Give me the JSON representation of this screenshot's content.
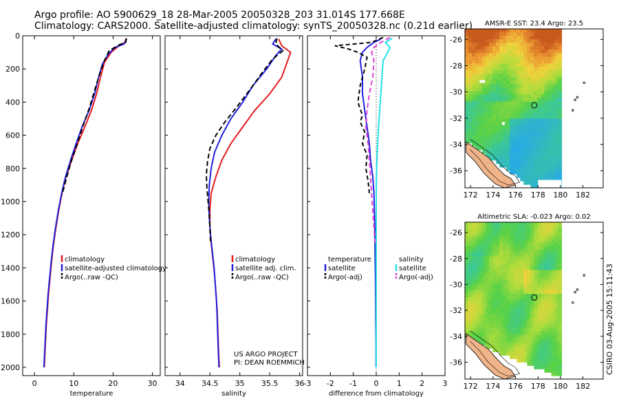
{
  "header": {
    "line1": "Argo profile: AO 5900629_18 28-Mar-2005 20050328_203 31.014S 177.668E",
    "line2": "Climatology: CARS2000. Satellite-adjusted climatology: synTS_20050328.nc (0.21d earlier)"
  },
  "side_text": "CSIRO 03-Aug-2005 15:11:43",
  "colors": {
    "clim": "#e41a1c",
    "sat": "#1f1fdd",
    "argo": "#000000",
    "sal_sat": "#22e0e8",
    "sal_argo": "#e040d8"
  },
  "chart_data": [
    {
      "type": "line",
      "xlabel": "temperature",
      "xlim": [
        -3,
        32
      ],
      "ylim": [
        2050,
        0
      ],
      "y_reversed": true,
      "x_ticks": [
        0,
        10,
        20,
        30
      ],
      "x_tick_labels": [
        "0",
        "10",
        "20",
        "30"
      ],
      "y_ticks": [
        0,
        200,
        400,
        600,
        800,
        1000,
        1200,
        1400,
        1600,
        1800,
        2000
      ],
      "y_tick_labels": [
        "0",
        "200",
        "400",
        "600",
        "800",
        "1000",
        "1200",
        "1400",
        "1600",
        "1800",
        "2000"
      ],
      "legend": [
        "climatology",
        "satellite-adjusted climatology",
        "Argo(..raw -QC)"
      ],
      "series": [
        {
          "name": "climatology",
          "color": "#e41a1c",
          "dash": "",
          "points": [
            [
              23.2,
              20
            ],
            [
              23.0,
              40
            ],
            [
              21.5,
              60
            ],
            [
              19.5,
              100
            ],
            [
              17.8,
              160
            ],
            [
              16.8,
              250
            ],
            [
              15.8,
              350
            ],
            [
              14.5,
              450
            ],
            [
              12.8,
              550
            ],
            [
              11.0,
              650
            ],
            [
              9.5,
              750
            ],
            [
              8.0,
              850
            ],
            [
              7.0,
              950
            ],
            [
              6.2,
              1050
            ],
            [
              5.5,
              1150
            ],
            [
              4.9,
              1250
            ],
            [
              4.4,
              1350
            ],
            [
              4.0,
              1450
            ],
            [
              3.6,
              1550
            ],
            [
              3.3,
              1650
            ],
            [
              3.0,
              1750
            ],
            [
              2.8,
              1850
            ],
            [
              2.6,
              1950
            ],
            [
              2.5,
              2000
            ]
          ]
        },
        {
          "name": "satellite-adjusted climatology",
          "color": "#1f1fdd",
          "dash": "",
          "points": [
            [
              23.4,
              20
            ],
            [
              22.8,
              50
            ],
            [
              20.5,
              70
            ],
            [
              18.8,
              110
            ],
            [
              17.3,
              170
            ],
            [
              16.3,
              250
            ],
            [
              15.3,
              350
            ],
            [
              13.9,
              450
            ],
            [
              12.1,
              550
            ],
            [
              10.6,
              650
            ],
            [
              9.2,
              750
            ],
            [
              7.9,
              850
            ],
            [
              6.9,
              950
            ],
            [
              6.1,
              1050
            ],
            [
              5.4,
              1150
            ],
            [
              4.8,
              1250
            ],
            [
              4.3,
              1350
            ],
            [
              3.9,
              1450
            ],
            [
              3.5,
              1550
            ],
            [
              3.2,
              1650
            ],
            [
              2.9,
              1750
            ],
            [
              2.7,
              1850
            ],
            [
              2.5,
              1950
            ],
            [
              2.4,
              2000
            ]
          ]
        },
        {
          "name": "Argo(..raw -QC)",
          "color": "#000000",
          "dash": "7,4",
          "points": [
            [
              23.4,
              15
            ],
            [
              23.2,
              40
            ],
            [
              21.5,
              55
            ],
            [
              19.0,
              90
            ],
            [
              17.8,
              150
            ],
            [
              16.6,
              230
            ],
            [
              15.3,
              330
            ],
            [
              13.9,
              440
            ],
            [
              12.4,
              540
            ],
            [
              10.9,
              650
            ],
            [
              9.3,
              760
            ],
            [
              8.0,
              870
            ],
            [
              7.0,
              960
            ]
          ]
        }
      ]
    },
    {
      "type": "line",
      "xlabel": "salinity",
      "xlim": [
        33.75,
        36.05
      ],
      "ylim": [
        2050,
        0
      ],
      "y_reversed": true,
      "x_ticks": [
        34,
        34.5,
        35,
        35.5,
        36
      ],
      "x_tick_labels": [
        "34",
        "34.5",
        "35",
        "35.5",
        "36"
      ],
      "legend": [
        "climatology",
        "satellite adj. clim.",
        "Argo(..raw -QC)"
      ],
      "annotation": [
        "US ARGO PROJECT",
        "PI: DEAN ROEMMICH"
      ],
      "series": [
        {
          "name": "climatology",
          "color": "#e41a1c",
          "dash": "",
          "points": [
            [
              35.65,
              20
            ],
            [
              35.7,
              60
            ],
            [
              35.85,
              100
            ],
            [
              35.8,
              150
            ],
            [
              35.7,
              250
            ],
            [
              35.5,
              350
            ],
            [
              35.25,
              450
            ],
            [
              35.05,
              550
            ],
            [
              34.85,
              650
            ],
            [
              34.7,
              750
            ],
            [
              34.6,
              850
            ],
            [
              34.52,
              950
            ],
            [
              34.5,
              1050
            ],
            [
              34.5,
              1150
            ],
            [
              34.52,
              1250
            ],
            [
              34.55,
              1350
            ],
            [
              34.58,
              1450
            ],
            [
              34.6,
              1550
            ],
            [
              34.62,
              1650
            ],
            [
              34.63,
              1750
            ],
            [
              34.64,
              1850
            ],
            [
              34.65,
              1950
            ],
            [
              34.66,
              2000
            ]
          ]
        },
        {
          "name": "satellite adj. clim.",
          "color": "#1f1fdd",
          "dash": "",
          "points": [
            [
              35.6,
              20
            ],
            [
              35.55,
              50
            ],
            [
              35.7,
              80
            ],
            [
              35.6,
              120
            ],
            [
              35.45,
              200
            ],
            [
              35.22,
              300
            ],
            [
              35.05,
              400
            ],
            [
              34.85,
              500
            ],
            [
              34.7,
              600
            ],
            [
              34.58,
              700
            ],
            [
              34.52,
              800
            ],
            [
              34.49,
              900
            ],
            [
              34.48,
              1000
            ],
            [
              34.49,
              1100
            ],
            [
              34.51,
              1200
            ],
            [
              34.54,
              1300
            ],
            [
              34.57,
              1400
            ],
            [
              34.59,
              1500
            ],
            [
              34.61,
              1600
            ],
            [
              34.62,
              1700
            ],
            [
              34.63,
              1800
            ],
            [
              34.64,
              1900
            ],
            [
              34.65,
              2000
            ]
          ]
        },
        {
          "name": "Argo(..raw -QC)",
          "color": "#000000",
          "dash": "7,4",
          "points": [
            [
              35.62,
              15
            ],
            [
              35.6,
              50
            ],
            [
              35.72,
              90
            ],
            [
              35.55,
              140
            ],
            [
              35.38,
              220
            ],
            [
              35.18,
              320
            ],
            [
              34.95,
              430
            ],
            [
              34.75,
              520
            ],
            [
              34.6,
              600
            ],
            [
              34.5,
              680
            ],
            [
              34.46,
              760
            ],
            [
              34.44,
              840
            ],
            [
              34.45,
              920
            ],
            [
              34.47,
              1000
            ],
            [
              34.49,
              1080
            ],
            [
              34.5,
              1160
            ],
            [
              34.51,
              1240
            ]
          ]
        }
      ]
    },
    {
      "type": "line",
      "xlabel": "difference from climatology",
      "xlim": [
        -3,
        3
      ],
      "ylim": [
        2050,
        0
      ],
      "y_reversed": true,
      "x_ticks": [
        -3,
        -2,
        -1,
        0,
        1,
        2,
        3
      ],
      "x_tick_labels": [
        "-3",
        "-2",
        "-1",
        "0",
        "1",
        "2",
        "3"
      ],
      "legend_left": [
        "temperature",
        "satellite",
        "Argo(-adj)"
      ],
      "legend_right": [
        "salinity",
        "satellite",
        "Argo(-adj)"
      ],
      "series": [
        {
          "name": "temperature satellite",
          "color": "#1f1fdd",
          "dash": "",
          "points": [
            [
              0.2,
              20
            ],
            [
              -0.1,
              40
            ],
            [
              -0.4,
              70
            ],
            [
              -0.6,
              100
            ],
            [
              -0.7,
              150
            ],
            [
              -0.6,
              250
            ],
            [
              -0.6,
              350
            ],
            [
              -0.5,
              450
            ],
            [
              -0.4,
              550
            ],
            [
              -0.3,
              650
            ],
            [
              -0.25,
              750
            ],
            [
              -0.15,
              850
            ],
            [
              -0.1,
              950
            ],
            [
              -0.08,
              1050
            ],
            [
              -0.06,
              1150
            ],
            [
              -0.05,
              1300
            ],
            [
              -0.03,
              1500
            ],
            [
              -0.02,
              1700
            ],
            [
              -0.01,
              1850
            ],
            [
              -0.01,
              2000
            ]
          ]
        },
        {
          "name": "temperature Argo(-adj)",
          "color": "#000000",
          "dash": "6,4",
          "points": [
            [
              0.3,
              10
            ],
            [
              -0.2,
              40
            ],
            [
              -1.8,
              60
            ],
            [
              -1.2,
              80
            ],
            [
              -0.8,
              100
            ],
            [
              -0.4,
              130
            ],
            [
              -0.5,
              200
            ],
            [
              -0.7,
              300
            ],
            [
              -0.8,
              400
            ],
            [
              -0.6,
              480
            ],
            [
              -0.7,
              520
            ],
            [
              -0.5,
              580
            ],
            [
              -0.6,
              650
            ],
            [
              -0.4,
              720
            ],
            [
              -0.45,
              800
            ],
            [
              -0.35,
              880
            ],
            [
              -0.3,
              950
            ]
          ]
        },
        {
          "name": "salinity satellite",
          "color": "#22e0e8",
          "dash": "",
          "points": [
            [
              0.7,
              15
            ],
            [
              0.4,
              40
            ],
            [
              0.6,
              70
            ],
            [
              0.5,
              100
            ],
            [
              0.3,
              150
            ],
            [
              0.25,
              250
            ],
            [
              0.2,
              350
            ],
            [
              0.15,
              450
            ],
            [
              0.1,
              550
            ],
            [
              0.06,
              650
            ],
            [
              0.03,
              750
            ],
            [
              0.01,
              850
            ],
            [
              0.0,
              950
            ],
            [
              0.0,
              1100
            ],
            [
              0.0,
              1300
            ],
            [
              0.0,
              1500
            ],
            [
              0.0,
              1700
            ],
            [
              0.0,
              2000
            ]
          ]
        },
        {
          "name": "salinity Argo(-adj)",
          "color": "#e040d8",
          "dash": "7,4",
          "points": [
            [
              0.6,
              10
            ],
            [
              0.2,
              40
            ],
            [
              -0.1,
              70
            ],
            [
              -0.2,
              100
            ],
            [
              -0.1,
              150
            ],
            [
              -0.15,
              250
            ],
            [
              -0.3,
              350
            ],
            [
              -0.4,
              450
            ],
            [
              -0.45,
              550
            ],
            [
              -0.35,
              650
            ],
            [
              -0.3,
              750
            ],
            [
              -0.25,
              850
            ],
            [
              -0.2,
              950
            ],
            [
              -0.15,
              1050
            ],
            [
              -0.1,
              1150
            ],
            [
              -0.05,
              1250
            ]
          ]
        }
      ]
    },
    {
      "type": "heatmap",
      "title": "AMSR-E SST: 23.4 Argo: 23.5",
      "x_ticks": [
        172,
        174,
        176,
        178,
        180,
        182
      ],
      "x_tick_labels": [
        "172",
        "174",
        "176",
        "178",
        "180",
        "182"
      ],
      "y_ticks": [
        -26,
        -28,
        -30,
        -32,
        -34,
        -36
      ],
      "y_tick_labels": [
        "-26",
        "-28",
        "-30",
        "-32",
        "-34",
        "-36"
      ],
      "xlim": [
        171.5,
        183.8
      ],
      "ylim": [
        -37.3,
        -25.2
      ],
      "argo_position": [
        177.668,
        -31.014
      ]
    },
    {
      "type": "heatmap",
      "title": "Altimetric SLA: -0.023 Argo: 0.02",
      "x_ticks": [
        172,
        174,
        176,
        178,
        180,
        182
      ],
      "x_tick_labels": [
        "172",
        "174",
        "176",
        "178",
        "180",
        "182"
      ],
      "y_ticks": [
        -26,
        -28,
        -30,
        -32,
        -34,
        -36
      ],
      "y_tick_labels": [
        "-26",
        "-28",
        "-30",
        "-32",
        "-34",
        "-36"
      ],
      "xlim": [
        171.5,
        183.8
      ],
      "ylim": [
        -37.3,
        -25.2
      ],
      "argo_position": [
        177.668,
        -31.014
      ]
    }
  ]
}
